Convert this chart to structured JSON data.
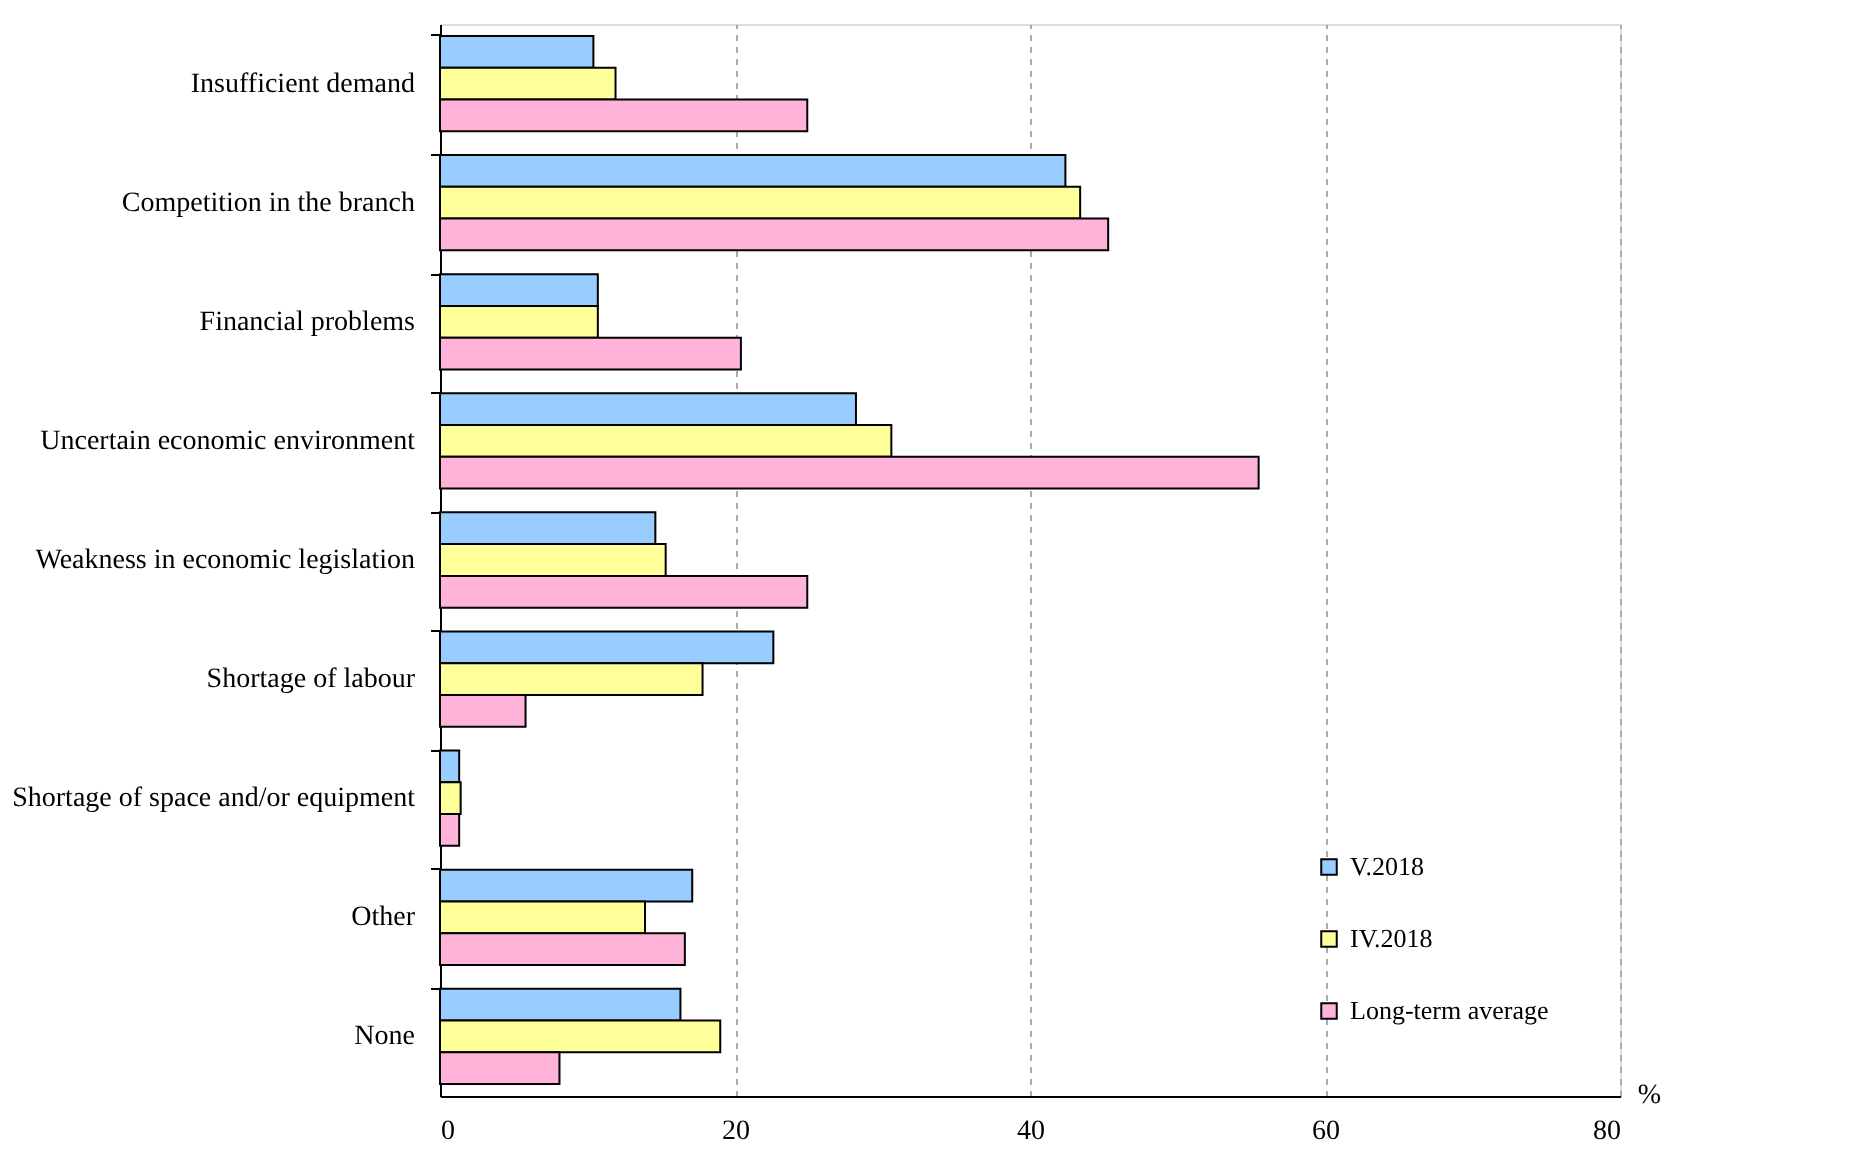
{
  "chart_data": {
    "type": "bar",
    "orientation": "horizontal",
    "xlabel": "%",
    "categories": [
      "Insufficient demand",
      "Competition in the branch",
      "Financial problems",
      "Uncertain economic environment",
      "Weakness in economic legislation",
      "Shortage of labour",
      "Shortage of space and/or equipment",
      "Other",
      "None"
    ],
    "series": [
      {
        "name": "V.2018",
        "color": "#99ccff",
        "values": [
          10.4,
          42.4,
          10.7,
          28.2,
          14.6,
          22.6,
          1.3,
          17.1,
          16.3
        ]
      },
      {
        "name": "IV.2018",
        "color": "#ffff99",
        "values": [
          11.9,
          43.4,
          10.7,
          30.6,
          15.3,
          17.8,
          1.4,
          13.9,
          19.0
        ]
      },
      {
        "name": "Long-term average",
        "color": "#ffb3d9",
        "values": [
          24.9,
          45.3,
          20.4,
          55.5,
          24.9,
          5.8,
          1.3,
          16.6,
          8.1
        ]
      }
    ],
    "xlim": [
      0,
      80
    ],
    "xticks": [
      0,
      20,
      40,
      60,
      80
    ],
    "grid": "x",
    "legend": "bottom right"
  }
}
